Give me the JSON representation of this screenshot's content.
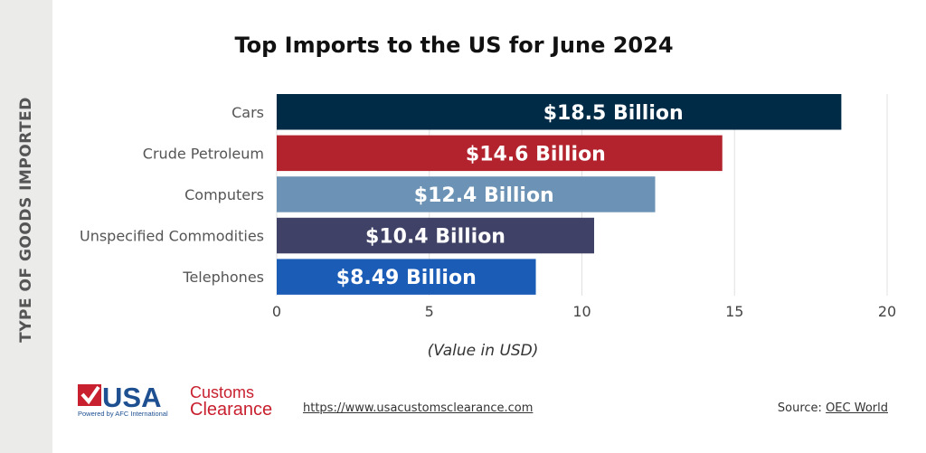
{
  "chart_data": {
    "type": "bar",
    "orientation": "horizontal",
    "title": "Top Imports to the US for June 2024",
    "xlabel": "(Value in USD)",
    "ylabel": "TYPE OF GOODS IMPORTED",
    "categories": [
      "Cars",
      "Crude Petroleum",
      "Computers",
      "Unspecified Commodities",
      "Telephones"
    ],
    "values": [
      18.5,
      14.6,
      12.4,
      10.4,
      8.49
    ],
    "data_labels": [
      "$18.5 Billion",
      "$14.6 Billion",
      "$12.4 Billion",
      "$10.4 Billion",
      "$8.49 Billion"
    ],
    "colors": [
      "#002b47",
      "#b3232d",
      "#6c93b5",
      "#3f4166",
      "#1b5cb6"
    ],
    "xlim": [
      0,
      20
    ],
    "xticks": [
      0,
      5,
      10,
      15,
      20
    ],
    "grid": true,
    "legend": "none"
  },
  "footer": {
    "logo_text": "USA Customs Clearance Powered by AFC International",
    "url": "https://www.usacustomsclearance.com",
    "source_label": "Source:",
    "source_link": "OEC World"
  }
}
